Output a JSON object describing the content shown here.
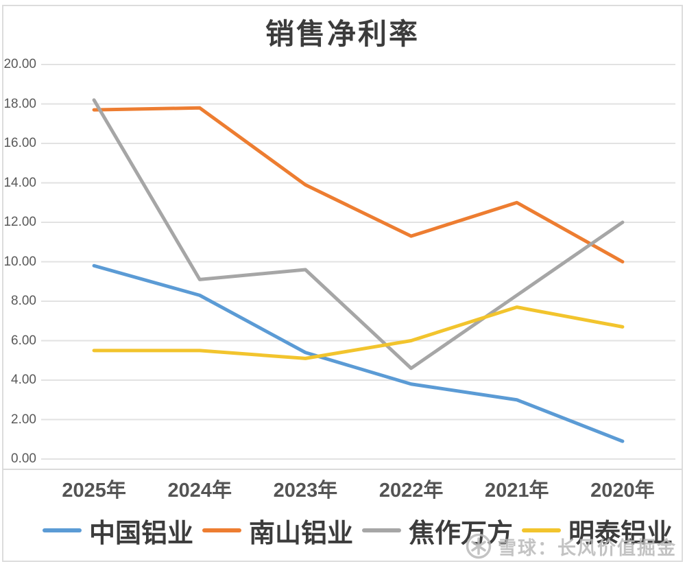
{
  "chart_data": {
    "type": "line",
    "title": "销售净利率",
    "categories": [
      "2025年",
      "2024年",
      "2023年",
      "2022年",
      "2021年",
      "2020年"
    ],
    "series": [
      {
        "name": "中国铝业",
        "color": "#5B9BD5",
        "values": [
          9.8,
          8.3,
          5.4,
          3.8,
          3.0,
          0.9
        ]
      },
      {
        "name": "南山铝业",
        "color": "#ED7D31",
        "values": [
          17.7,
          17.8,
          13.9,
          11.3,
          13.0,
          10.0
        ]
      },
      {
        "name": "焦作万方",
        "color": "#A6A6A6",
        "values": [
          18.2,
          9.1,
          9.6,
          4.6,
          8.3,
          12.0
        ]
      },
      {
        "name": "明泰铝业",
        "color": "#F2C42D",
        "values": [
          5.5,
          5.5,
          5.1,
          6.0,
          7.7,
          6.7
        ]
      }
    ],
    "ylim": [
      0,
      20
    ],
    "y_ticks": [
      "20.00",
      "18.00",
      "16.00",
      "14.00",
      "12.00",
      "10.00",
      "8.00",
      "6.00",
      "4.00",
      "2.00",
      "0.00"
    ],
    "grid": true,
    "gridline_color": "#e2e2e2",
    "legend_position": "bottom"
  },
  "watermark": {
    "text": "雪球：长风价值掘金",
    "icon": "snowball-logo"
  }
}
